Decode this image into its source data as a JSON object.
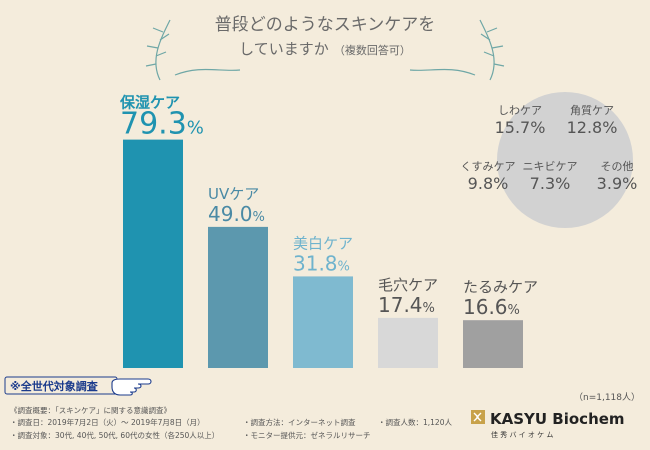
{
  "title_line1": "普段どのようなスキンケアを",
  "title_line2": "していますか",
  "title_suffix": "（複数回答可）",
  "chart_data": {
    "type": "bar",
    "unit": "%",
    "categories": [
      "保湿ケア",
      "UVケア",
      "美白ケア",
      "毛穴ケア",
      "たるみケア"
    ],
    "values": [
      79.3,
      49.0,
      31.8,
      17.4,
      16.6
    ],
    "colors": [
      "#1f93b0",
      "#5c98ae",
      "#7fbad0",
      "#d8d8d8",
      "#a0a0a0"
    ],
    "label_colors": [
      "#1f93b0",
      "#4a8aa5",
      "#6fb3cd",
      "#555555",
      "#555555"
    ],
    "ylim": [
      0,
      100
    ]
  },
  "other_care": {
    "items": [
      {
        "label": "しわケア",
        "value": "15.7%"
      },
      {
        "label": "角質ケア",
        "value": "12.8%"
      },
      {
        "label": "くすみケア",
        "value": "9.8%"
      },
      {
        "label": "ニキビケア",
        "value": "7.3%"
      },
      {
        "label": "その他",
        "value": "3.9%"
      }
    ],
    "circle_color": "#d2d2d2"
  },
  "all_generations_tag": "※全世代対象調査",
  "sample_size": "（n=1,118人）",
  "footer": {
    "line1": "《調査概要：「スキンケア」に関する意識調査》",
    "line2": "・調査日：2019年7月2日（火）～ 2019年7月8日（月）",
    "line2b": "・調査方法：インターネット調査",
    "line2c": "・調査人数：1,120人",
    "line3": "・調査対象：30代, 40代, 50代, 60代の女性（各250人以上）",
    "line3b": "・モニター提供元：ゼネラルリサーチ"
  },
  "brand": {
    "name": "KASYU Biochem",
    "sub": "佳 秀 バ イ オ ケ ム"
  }
}
